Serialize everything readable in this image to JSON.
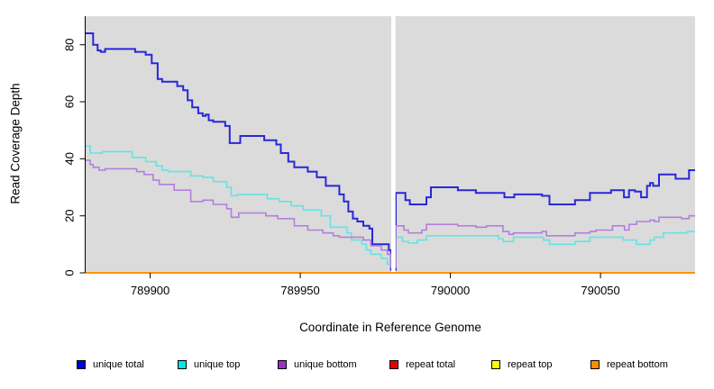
{
  "chart_data": {
    "type": "line",
    "line_style": "step",
    "title": "",
    "xlabel": "Coordinate in Reference Genome",
    "ylabel": "Read Coverage Depth",
    "xlim": [
      789878.5,
      790081.5
    ],
    "ylim": [
      0,
      90
    ],
    "x_ticks": [
      789900,
      789950,
      790000,
      790050
    ],
    "x_tick_labels": [
      "789900",
      "789950",
      "790000",
      "790050"
    ],
    "y_ticks": [
      0,
      20,
      40,
      60,
      80
    ],
    "y_tick_labels": [
      "0",
      "20",
      "40",
      "60",
      "80"
    ],
    "grid": false,
    "legend_position": "bottom",
    "panel_bg": "#DBDBDB",
    "axis_color": "#000000",
    "gap_region": {
      "x_start": 789980.3,
      "x_end": 789981.7,
      "color": "#FFFFFF"
    },
    "series": [
      {
        "name": "unique total",
        "legend_color": "#0000E0",
        "line_color": "#2828D8",
        "line_width": 2,
        "points": [
          [
            789878.5,
            84
          ],
          [
            789881,
            80
          ],
          [
            789882.5,
            78
          ],
          [
            789883.5,
            77.5
          ],
          [
            789885,
            78.5
          ],
          [
            789895,
            77.5
          ],
          [
            789898.5,
            76.5
          ],
          [
            789900.5,
            73.5
          ],
          [
            789902.5,
            68
          ],
          [
            789904,
            67
          ],
          [
            789909,
            65.5
          ],
          [
            789911,
            64
          ],
          [
            789912.5,
            60.5
          ],
          [
            789914,
            58
          ],
          [
            789916,
            56
          ],
          [
            789917.5,
            55
          ],
          [
            789918.5,
            55.5
          ],
          [
            789919.5,
            53.5
          ],
          [
            789921,
            53
          ],
          [
            789925,
            51.5
          ],
          [
            789926.5,
            45.5
          ],
          [
            789930,
            48
          ],
          [
            789938,
            46.5
          ],
          [
            789942,
            45
          ],
          [
            789943.5,
            42
          ],
          [
            789946,
            39
          ],
          [
            789948,
            37
          ],
          [
            789952.5,
            35.5
          ],
          [
            789955.5,
            33.5
          ],
          [
            789958.5,
            30.5
          ],
          [
            789963,
            27.5
          ],
          [
            789964.5,
            25
          ],
          [
            789966,
            21.5
          ],
          [
            789967.5,
            19
          ],
          [
            789969,
            18
          ],
          [
            789971,
            16.5
          ],
          [
            789973,
            15.5
          ],
          [
            789974,
            10
          ],
          [
            789979.5,
            8
          ],
          [
            789980.2,
            1
          ],
          [
            789981.8,
            28
          ],
          [
            789985,
            25.5
          ],
          [
            789986.5,
            24
          ],
          [
            789992,
            26.5
          ],
          [
            789993.5,
            30
          ],
          [
            790002.5,
            29
          ],
          [
            790008.5,
            28
          ],
          [
            790018,
            26.5
          ],
          [
            790021.3,
            27.5
          ],
          [
            790030.5,
            27
          ],
          [
            790033,
            24
          ],
          [
            790041.5,
            25.5
          ],
          [
            790046.5,
            28
          ],
          [
            790053.5,
            29
          ],
          [
            790057.8,
            26.5
          ],
          [
            790059.5,
            29
          ],
          [
            790061.5,
            28.5
          ],
          [
            790063.5,
            26.5
          ],
          [
            790065.5,
            30.5
          ],
          [
            790066.5,
            31.5
          ],
          [
            790067.5,
            30.5
          ],
          [
            790069.5,
            34.5
          ],
          [
            790075,
            33
          ],
          [
            790079.5,
            36
          ]
        ]
      },
      {
        "name": "unique top",
        "legend_color": "#00E5E5",
        "line_color": "#63E4E4",
        "line_width": 1.6,
        "points": [
          [
            789878.5,
            44.5
          ],
          [
            789880,
            42
          ],
          [
            789884,
            42.5
          ],
          [
            789894,
            40.5
          ],
          [
            789898.5,
            39
          ],
          [
            789902,
            37.5
          ],
          [
            789904,
            36
          ],
          [
            789906,
            35.5
          ],
          [
            789913.5,
            34
          ],
          [
            789917.5,
            33.5
          ],
          [
            789921,
            32
          ],
          [
            789925.5,
            30
          ],
          [
            789927,
            27
          ],
          [
            789929,
            27.5
          ],
          [
            789939,
            26
          ],
          [
            789943,
            25
          ],
          [
            789947,
            23.5
          ],
          [
            789951,
            22
          ],
          [
            789957,
            20
          ],
          [
            789960,
            16
          ],
          [
            789965.5,
            14
          ],
          [
            789967,
            11.5
          ],
          [
            789970.5,
            10
          ],
          [
            789972,
            8
          ],
          [
            789973.5,
            6.5
          ],
          [
            789977,
            5
          ],
          [
            789979,
            3
          ],
          [
            789980.2,
            2.5
          ],
          [
            789981.8,
            12.5
          ],
          [
            789984,
            11
          ],
          [
            789986,
            10.5
          ],
          [
            789989,
            11.5
          ],
          [
            789992,
            13
          ],
          [
            790016,
            12
          ],
          [
            790017.5,
            11
          ],
          [
            790021,
            12.5
          ],
          [
            790031,
            11.5
          ],
          [
            790033,
            10
          ],
          [
            790041.5,
            11
          ],
          [
            790046.5,
            12.5
          ],
          [
            790057.5,
            11.5
          ],
          [
            790062,
            10
          ],
          [
            790066.5,
            11.5
          ],
          [
            790068,
            12.5
          ],
          [
            790071,
            14
          ],
          [
            790079,
            14.5
          ]
        ]
      },
      {
        "name": "unique bottom",
        "legend_color": "#9932CC",
        "line_color": "#B27FDC",
        "line_width": 1.6,
        "points": [
          [
            789878.5,
            39.5
          ],
          [
            789880,
            38
          ],
          [
            789881,
            37
          ],
          [
            789883,
            36
          ],
          [
            789885,
            36.5
          ],
          [
            789895.5,
            35.5
          ],
          [
            789898,
            34.5
          ],
          [
            789901,
            32.5
          ],
          [
            789903,
            31
          ],
          [
            789908,
            29
          ],
          [
            789913.5,
            25
          ],
          [
            789917.5,
            25.5
          ],
          [
            789921,
            24
          ],
          [
            789925.5,
            22.5
          ],
          [
            789927,
            19.5
          ],
          [
            789929.5,
            21
          ],
          [
            789938.5,
            20
          ],
          [
            789942.5,
            19
          ],
          [
            789948,
            16.5
          ],
          [
            789952.5,
            15
          ],
          [
            789957.5,
            14
          ],
          [
            789961,
            13
          ],
          [
            789963,
            12.5
          ],
          [
            789971,
            11.5
          ],
          [
            789973.5,
            9.5
          ],
          [
            789977,
            8
          ],
          [
            789979,
            6.5
          ],
          [
            789980.2,
            2
          ],
          [
            789981.8,
            16.5
          ],
          [
            789984.5,
            15
          ],
          [
            789986,
            14
          ],
          [
            789990.5,
            15
          ],
          [
            789992,
            17
          ],
          [
            790002.5,
            16.5
          ],
          [
            790008.5,
            16
          ],
          [
            790012,
            16.5
          ],
          [
            790017.5,
            14.5
          ],
          [
            790019.5,
            13.5
          ],
          [
            790021,
            14
          ],
          [
            790030.5,
            14.5
          ],
          [
            790032,
            13
          ],
          [
            790041.5,
            14
          ],
          [
            790046.5,
            14.5
          ],
          [
            790048.5,
            15
          ],
          [
            790054,
            16.5
          ],
          [
            790058,
            15
          ],
          [
            790059.5,
            17
          ],
          [
            790062,
            18
          ],
          [
            790066.5,
            18.5
          ],
          [
            790068,
            18
          ],
          [
            790069.5,
            19.5
          ],
          [
            790077,
            19
          ],
          [
            790079.5,
            20
          ]
        ]
      },
      {
        "name": "repeat total",
        "legend_color": "#E60000",
        "line_color": "#E60000",
        "line_width": 1.6,
        "points": [
          [
            789878.5,
            0
          ],
          [
            790081.5,
            0
          ]
        ]
      },
      {
        "name": "repeat top",
        "legend_color": "#FFFF00",
        "line_color": "#FFFF00",
        "line_width": 1.6,
        "points": [
          [
            789878.5,
            0
          ],
          [
            790081.5,
            0
          ]
        ]
      },
      {
        "name": "repeat bottom",
        "legend_color": "#FF8C00",
        "line_color": "#FF8C00",
        "line_width": 1.8,
        "points": [
          [
            789878.5,
            0
          ],
          [
            790081.5,
            0
          ]
        ]
      }
    ]
  }
}
